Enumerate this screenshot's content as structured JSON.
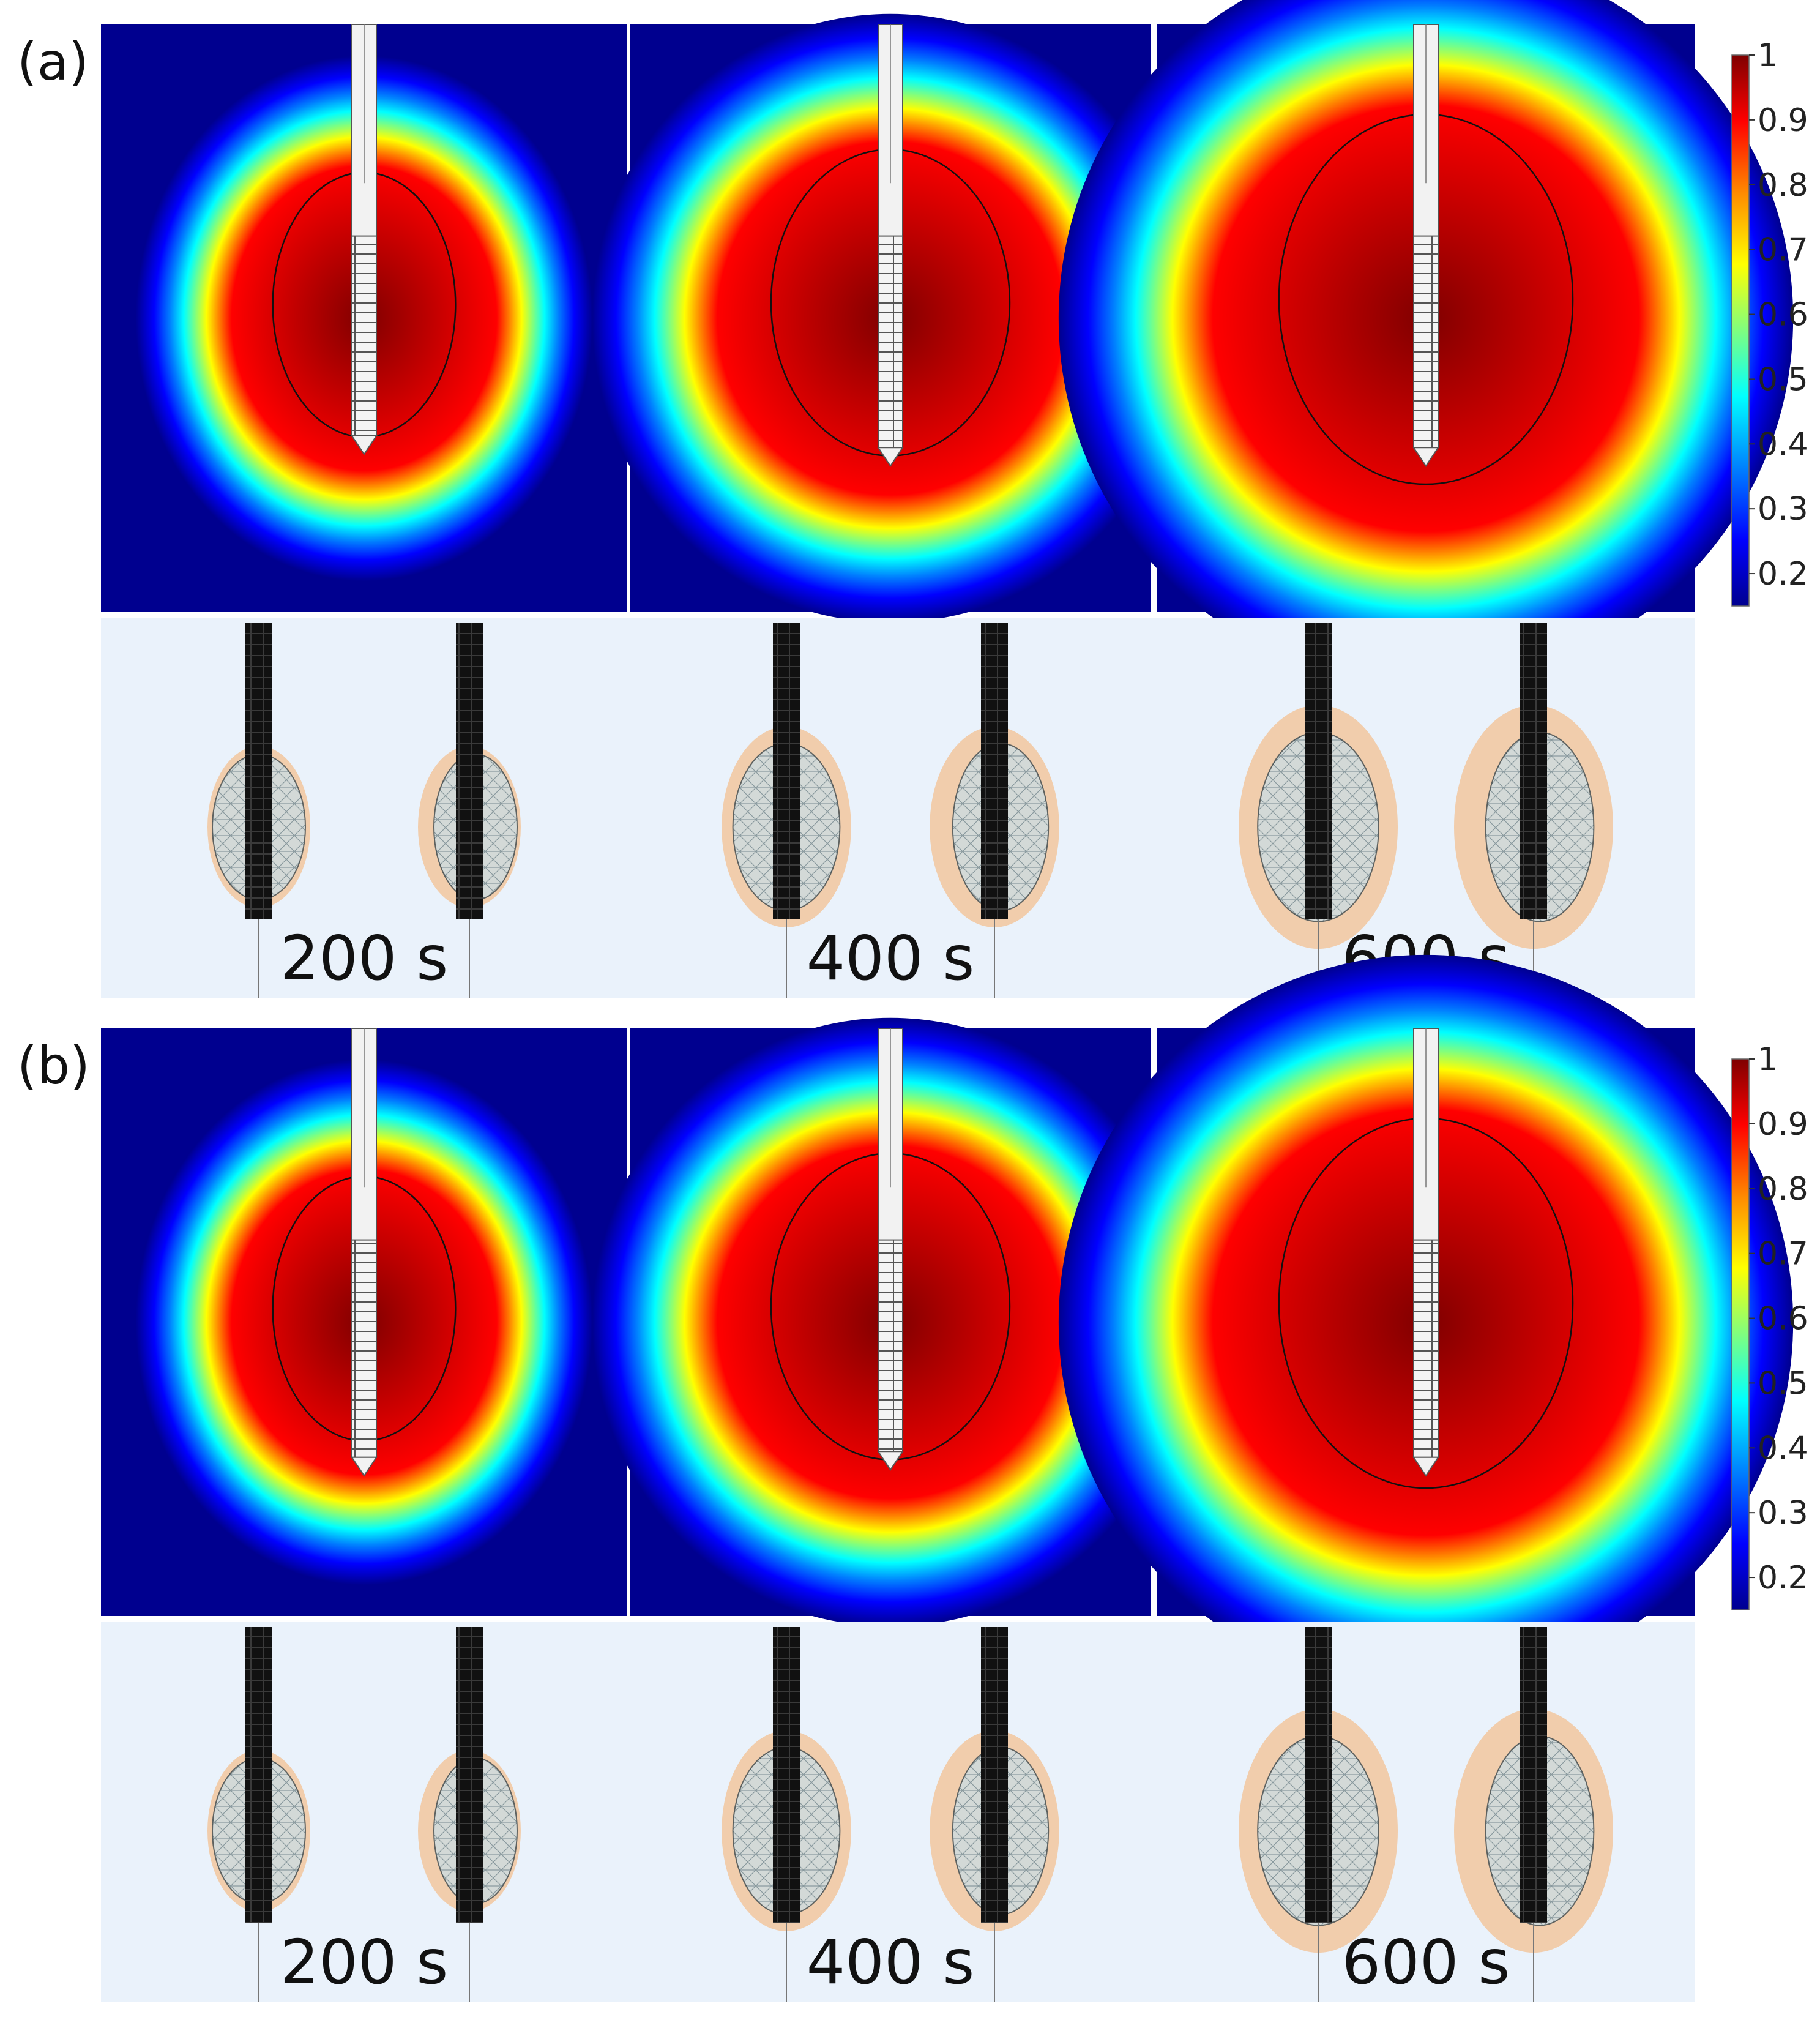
{
  "panels": [
    {
      "label": "(a)",
      "times": [
        "200 s",
        "400 s",
        "600 s"
      ],
      "needle_depth": [
        0.7,
        0.72,
        0.72
      ]
    },
    {
      "label": "(b)",
      "times": [
        "200 s",
        "400 s",
        "600 s"
      ],
      "needle_depth": [
        0.73,
        0.72,
        0.73
      ]
    }
  ],
  "heatmap": {
    "relative_radius": [
      0.56,
      0.74,
      0.88
    ],
    "aspect": [
      1.15,
      1.02,
      1.0
    ],
    "colors": {
      "background": "#00008f",
      "core": "#7f0000",
      "ramp": [
        "#7f0000",
        "#ff0000",
        "#ff8a00",
        "#ffff00",
        "#7fff7f",
        "#00ffff",
        "#0080ff",
        "#0000ff",
        "#00008f"
      ]
    }
  },
  "colorbar": {
    "ticks": [
      "1",
      "0.9",
      "0.8",
      "0.7",
      "0.6",
      "0.5",
      "0.4",
      "0.3",
      "0.2"
    ],
    "min": 0.15,
    "max": 1.0
  },
  "render3d": {
    "colors": {
      "background": "#eaf2fb",
      "needle": "#111111",
      "lesion": "#f2c79d",
      "mesh": "#c9dde6"
    }
  }
}
